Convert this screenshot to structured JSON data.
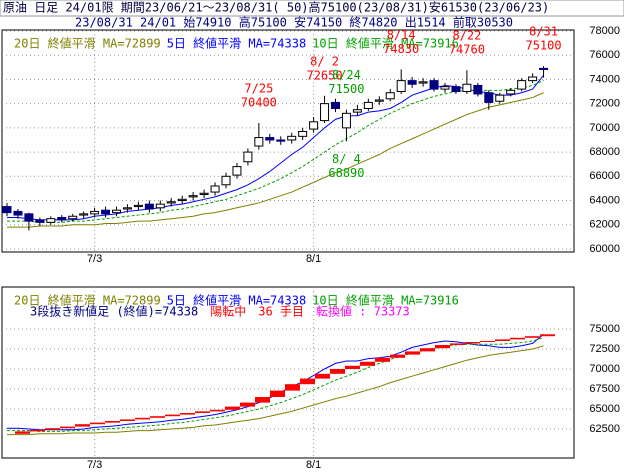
{
  "header": {
    "line1": "原油 日足 24/01限 期間23/06/21～23/08/31( 50)高75100(23/08/31)安61530(23/06/23)",
    "line2": "23/08/31 24/01 始74910 高75100 安74150 終74820 出1514 前取30530"
  },
  "chart_data": [
    {
      "type": "candlestick",
      "categories": [
        null,
        null,
        null,
        null,
        null,
        null,
        null,
        null,
        "7/3",
        null,
        null,
        null,
        null,
        null,
        null,
        null,
        null,
        null,
        null,
        null,
        null,
        null,
        null,
        null,
        null,
        null,
        null,
        null,
        "8/1",
        null,
        null,
        null,
        null,
        null,
        null,
        null,
        null,
        null,
        null,
        null,
        null,
        null,
        null,
        null,
        null,
        null,
        null,
        null,
        null,
        null
      ],
      "open": [
        63500,
        63100,
        62900,
        62400,
        62200,
        62600,
        62500,
        62800,
        62900,
        63200,
        63000,
        63300,
        63500,
        63700,
        63400,
        63800,
        64000,
        64300,
        64500,
        64700,
        65300,
        66100,
        67200,
        68500,
        69200,
        69000,
        69000,
        69300,
        69900,
        70600,
        72100,
        70000,
        71300,
        71600,
        72200,
        72400,
        73000,
        73900,
        73700,
        73900,
        73200,
        73400,
        73000,
        73500,
        72900,
        72200,
        72800,
        73200,
        73900,
        74910
      ],
      "high": [
        63800,
        63300,
        63000,
        62600,
        62700,
        62800,
        62900,
        63100,
        63400,
        63500,
        63500,
        63700,
        63900,
        64000,
        64000,
        64200,
        64400,
        64700,
        64900,
        65500,
        66300,
        67100,
        68300,
        70400,
        69500,
        69300,
        69600,
        70000,
        70900,
        72650,
        72400,
        71500,
        71900,
        72400,
        72600,
        73200,
        74830,
        74200,
        74100,
        74100,
        73700,
        73600,
        74760,
        73700,
        73100,
        72900,
        73300,
        74100,
        74500,
        75100
      ],
      "low": [
        62700,
        62500,
        61530,
        61900,
        62000,
        62200,
        62300,
        62500,
        62600,
        62600,
        62700,
        63000,
        63200,
        63000,
        63100,
        63500,
        63700,
        64000,
        64200,
        64400,
        65000,
        65800,
        66900,
        68200,
        68700,
        68600,
        68700,
        69000,
        69600,
        70400,
        71300,
        68890,
        71000,
        71400,
        71900,
        72200,
        72800,
        73300,
        73400,
        73000,
        72900,
        72800,
        72800,
        72600,
        71500,
        72000,
        72600,
        73000,
        73700,
        74150
      ],
      "close": [
        63000,
        62800,
        62300,
        62200,
        62500,
        62400,
        62700,
        62900,
        63100,
        62900,
        63200,
        63400,
        63600,
        63300,
        63700,
        63900,
        64100,
        64400,
        64600,
        65200,
        66000,
        66800,
        68000,
        69200,
        69000,
        68900,
        69300,
        69700,
        70500,
        72000,
        71600,
        71200,
        71500,
        72100,
        72300,
        72900,
        73900,
        73600,
        73800,
        73200,
        73400,
        73000,
        73600,
        72800,
        72100,
        72700,
        73100,
        73900,
        74200,
        74820
      ],
      "up_color": "#ffffff",
      "down_color": "#000080",
      "ylim": [
        59750,
        78080
      ],
      "yticks": [
        60000,
        62000,
        64000,
        66000,
        68000,
        70000,
        72000,
        74000,
        76000,
        78000
      ],
      "grid": true,
      "series": [
        {
          "name": "20日 終値平滑 MA=72899",
          "color": "#808000",
          "dash": false,
          "values": [
            61800,
            61800,
            61800,
            61900,
            61900,
            61900,
            62000,
            62000,
            62000,
            62100,
            62100,
            62200,
            62300,
            62300,
            62400,
            62500,
            62600,
            62700,
            62900,
            63000,
            63200,
            63400,
            63600,
            63800,
            64100,
            64400,
            64700,
            65100,
            65500,
            65900,
            66300,
            66600,
            67000,
            67400,
            67800,
            68300,
            68700,
            69100,
            69500,
            69900,
            70300,
            70700,
            71100,
            71400,
            71700,
            71900,
            72100,
            72300,
            72500,
            72899
          ]
        },
        {
          "name": "5日 終値平滑 MA=74338",
          "color": "#0000ff",
          "dash": false,
          "values": [
            62600,
            62600,
            62500,
            62400,
            62400,
            62400,
            62400,
            62500,
            62700,
            62800,
            62900,
            63100,
            63200,
            63300,
            63400,
            63600,
            63700,
            63900,
            64100,
            64300,
            64600,
            64900,
            65300,
            65800,
            66400,
            67100,
            67800,
            68400,
            69200,
            70000,
            70700,
            71000,
            71000,
            71300,
            71400,
            71600,
            72100,
            72700,
            73000,
            73300,
            73500,
            73400,
            73200,
            73000,
            72900,
            72700,
            72700,
            72900,
            73200,
            74338
          ]
        },
        {
          "name": "10日 終値平滑 MA=73916",
          "color": "#00a000",
          "dash": true,
          "values": [
            62300,
            62300,
            62300,
            62200,
            62200,
            62200,
            62300,
            62300,
            62400,
            62500,
            62600,
            62700,
            62800,
            62900,
            63000,
            63200,
            63300,
            63500,
            63700,
            63900,
            64100,
            64400,
            64700,
            65000,
            65400,
            65800,
            66300,
            66800,
            67400,
            68000,
            68600,
            69100,
            69600,
            70200,
            70700,
            71200,
            71600,
            72000,
            72300,
            72600,
            72800,
            73000,
            73100,
            73100,
            73100,
            73100,
            73200,
            73300,
            73500,
            73916
          ]
        }
      ],
      "annotations": [
        {
          "date": "7/25",
          "value": 70400,
          "color": "#ff0000"
        },
        {
          "date": "8/ 2",
          "value": 72650,
          "color": "#ff0000"
        },
        {
          "date": "8/ 4",
          "value": 68890,
          "color": "#00a000"
        },
        {
          "date": "8/14",
          "value": 74830,
          "color": "#ff0000"
        },
        {
          "date": "8/22",
          "value": 74760,
          "color": "#ff0000"
        },
        {
          "date": "8/24",
          "value": 71500,
          "color": "#00a000"
        },
        {
          "date": "8/31",
          "value": 75100,
          "color": "#ff0000"
        }
      ]
    },
    {
      "type": "three_line_break",
      "base": 61900,
      "tops": [
        62200,
        62400,
        62600,
        62800,
        63100,
        63300,
        63500,
        63700,
        63900,
        64100,
        64300,
        64500,
        64700,
        64900,
        65300,
        65800,
        66500,
        67300,
        68100,
        68800,
        69400,
        70000,
        70400,
        70900,
        71400,
        71800,
        72200,
        72600,
        73000,
        73200,
        73373,
        73500,
        73700,
        73900,
        74100,
        74338
      ],
      "color": "#ff0000",
      "ylim": [
        58875,
        80250
      ],
      "yticks": [
        62500,
        65000,
        67500,
        70000,
        72500,
        75000
      ],
      "grid": true,
      "status": [
        {
          "text": "3段抜き新値足 (終値)=74338",
          "color": "#000080"
        },
        {
          "text": "陽転中",
          "color": "#ff0000"
        },
        {
          "text": "36 手目",
          "color": "#ff0000"
        },
        {
          "text": "転換値 : 73373",
          "color": "#ff00ff"
        }
      ]
    }
  ]
}
